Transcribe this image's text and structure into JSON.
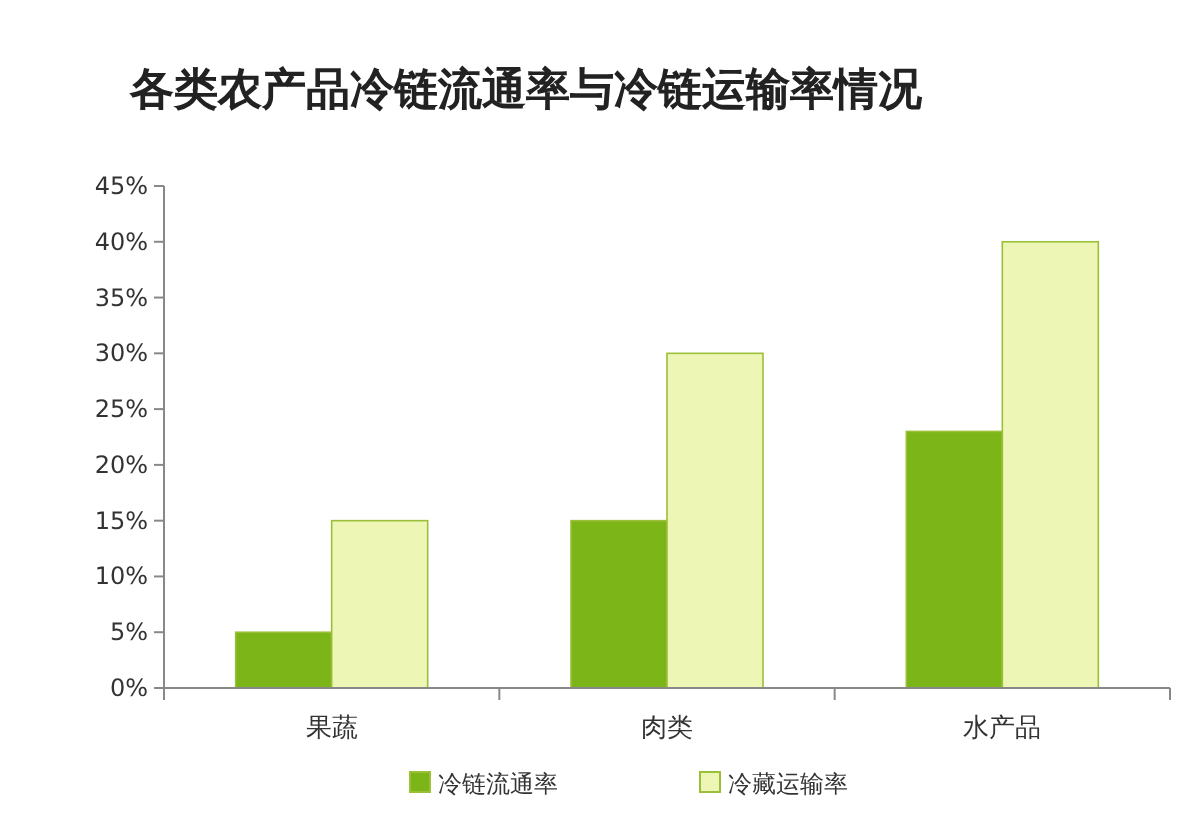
{
  "chart_data": {
    "type": "bar",
    "title": "各类农产品冷链流通率与冷链运输率情况",
    "categories": [
      "果蔬",
      "肉类",
      "水产品"
    ],
    "series": [
      {
        "name": "冷链流通率",
        "color": "#7cb518",
        "values": [
          5,
          15,
          23
        ]
      },
      {
        "name": "冷藏运输率",
        "color": "#eef6b6",
        "values": [
          15,
          30,
          40
        ]
      }
    ],
    "ylim": [
      0,
      45
    ],
    "yticks": [
      {
        "value": 0,
        "label": "0%"
      },
      {
        "value": 5,
        "label": "5%"
      },
      {
        "value": 10,
        "label": "10%"
      },
      {
        "value": 15,
        "label": "15%"
      },
      {
        "value": 20,
        "label": "20%"
      },
      {
        "value": 25,
        "label": "25%"
      },
      {
        "value": 30,
        "label": "30%"
      },
      {
        "value": 35,
        "label": "35%"
      },
      {
        "value": 40,
        "label": "40%"
      },
      {
        "value": 45,
        "label": "45%"
      }
    ],
    "legend": "bottom"
  }
}
